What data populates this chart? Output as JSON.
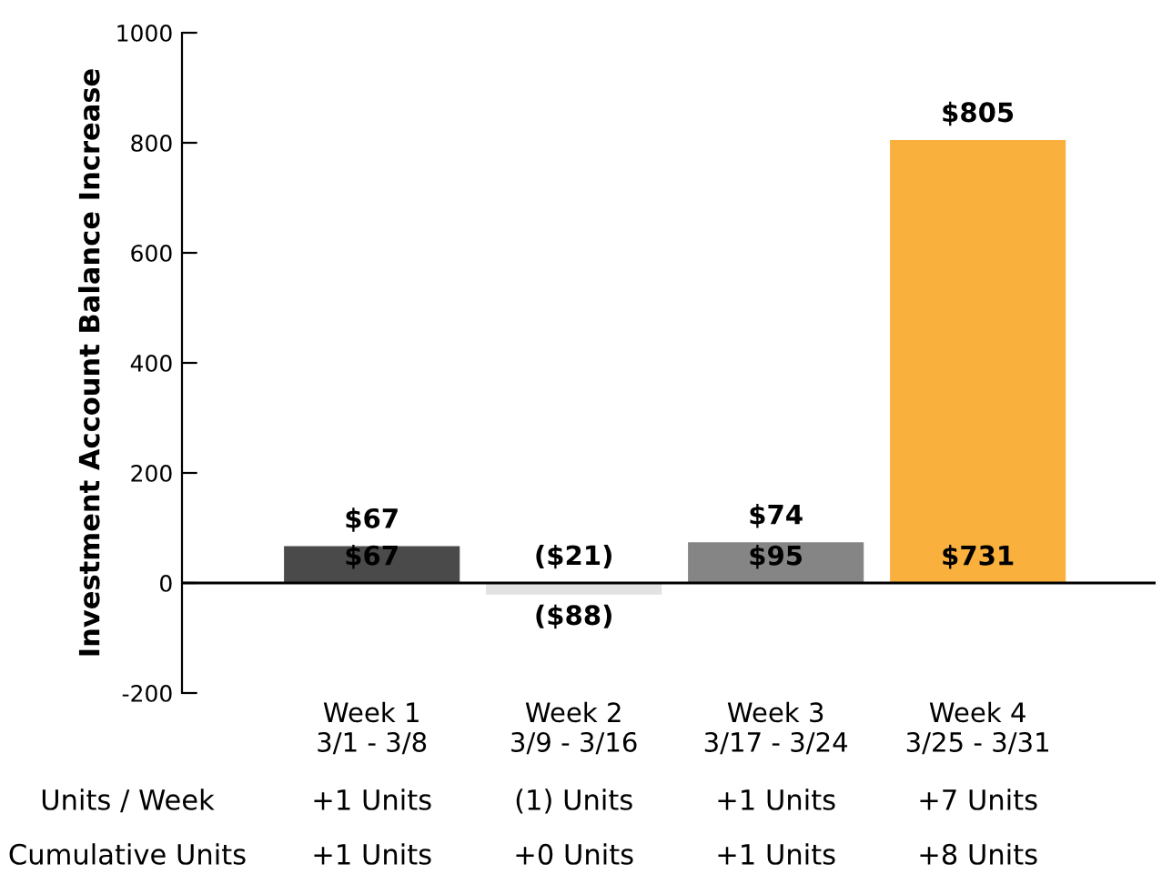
{
  "chart_data": {
    "type": "bar",
    "ylabel": "Investment Account Balance Increase",
    "categories": [
      "Week 1\n3/1 - 3/8",
      "Week 2\n3/9 - 3/16",
      "Week 3\n3/17 - 3/24",
      "Week 4\n3/25 - 3/31"
    ],
    "values": [
      67,
      -21,
      74,
      805
    ],
    "colors": [
      "#4a4a4a",
      "#e2e2e2",
      "#858585",
      "#f9b03c"
    ],
    "value_labels": [
      "$67",
      "($21)",
      "$74",
      "$805"
    ],
    "ylim": [
      -200,
      1000
    ],
    "yticks": [
      -200,
      0,
      200,
      400,
      600,
      800,
      1000
    ],
    "grid": false,
    "legend": false,
    "ref_lines": [
      {
        "axis": "y",
        "value": 0,
        "color": "#000000"
      }
    ],
    "annotations": [
      "$67",
      "($88)",
      "$95",
      "$731",
      "Units / Week",
      "+1 Units",
      "(1) Units",
      "+1 Units",
      "+7 Units",
      "Cumulative Units",
      "+1 Units",
      "+0 Units",
      "+1 Units",
      "+8 Units"
    ]
  }
}
